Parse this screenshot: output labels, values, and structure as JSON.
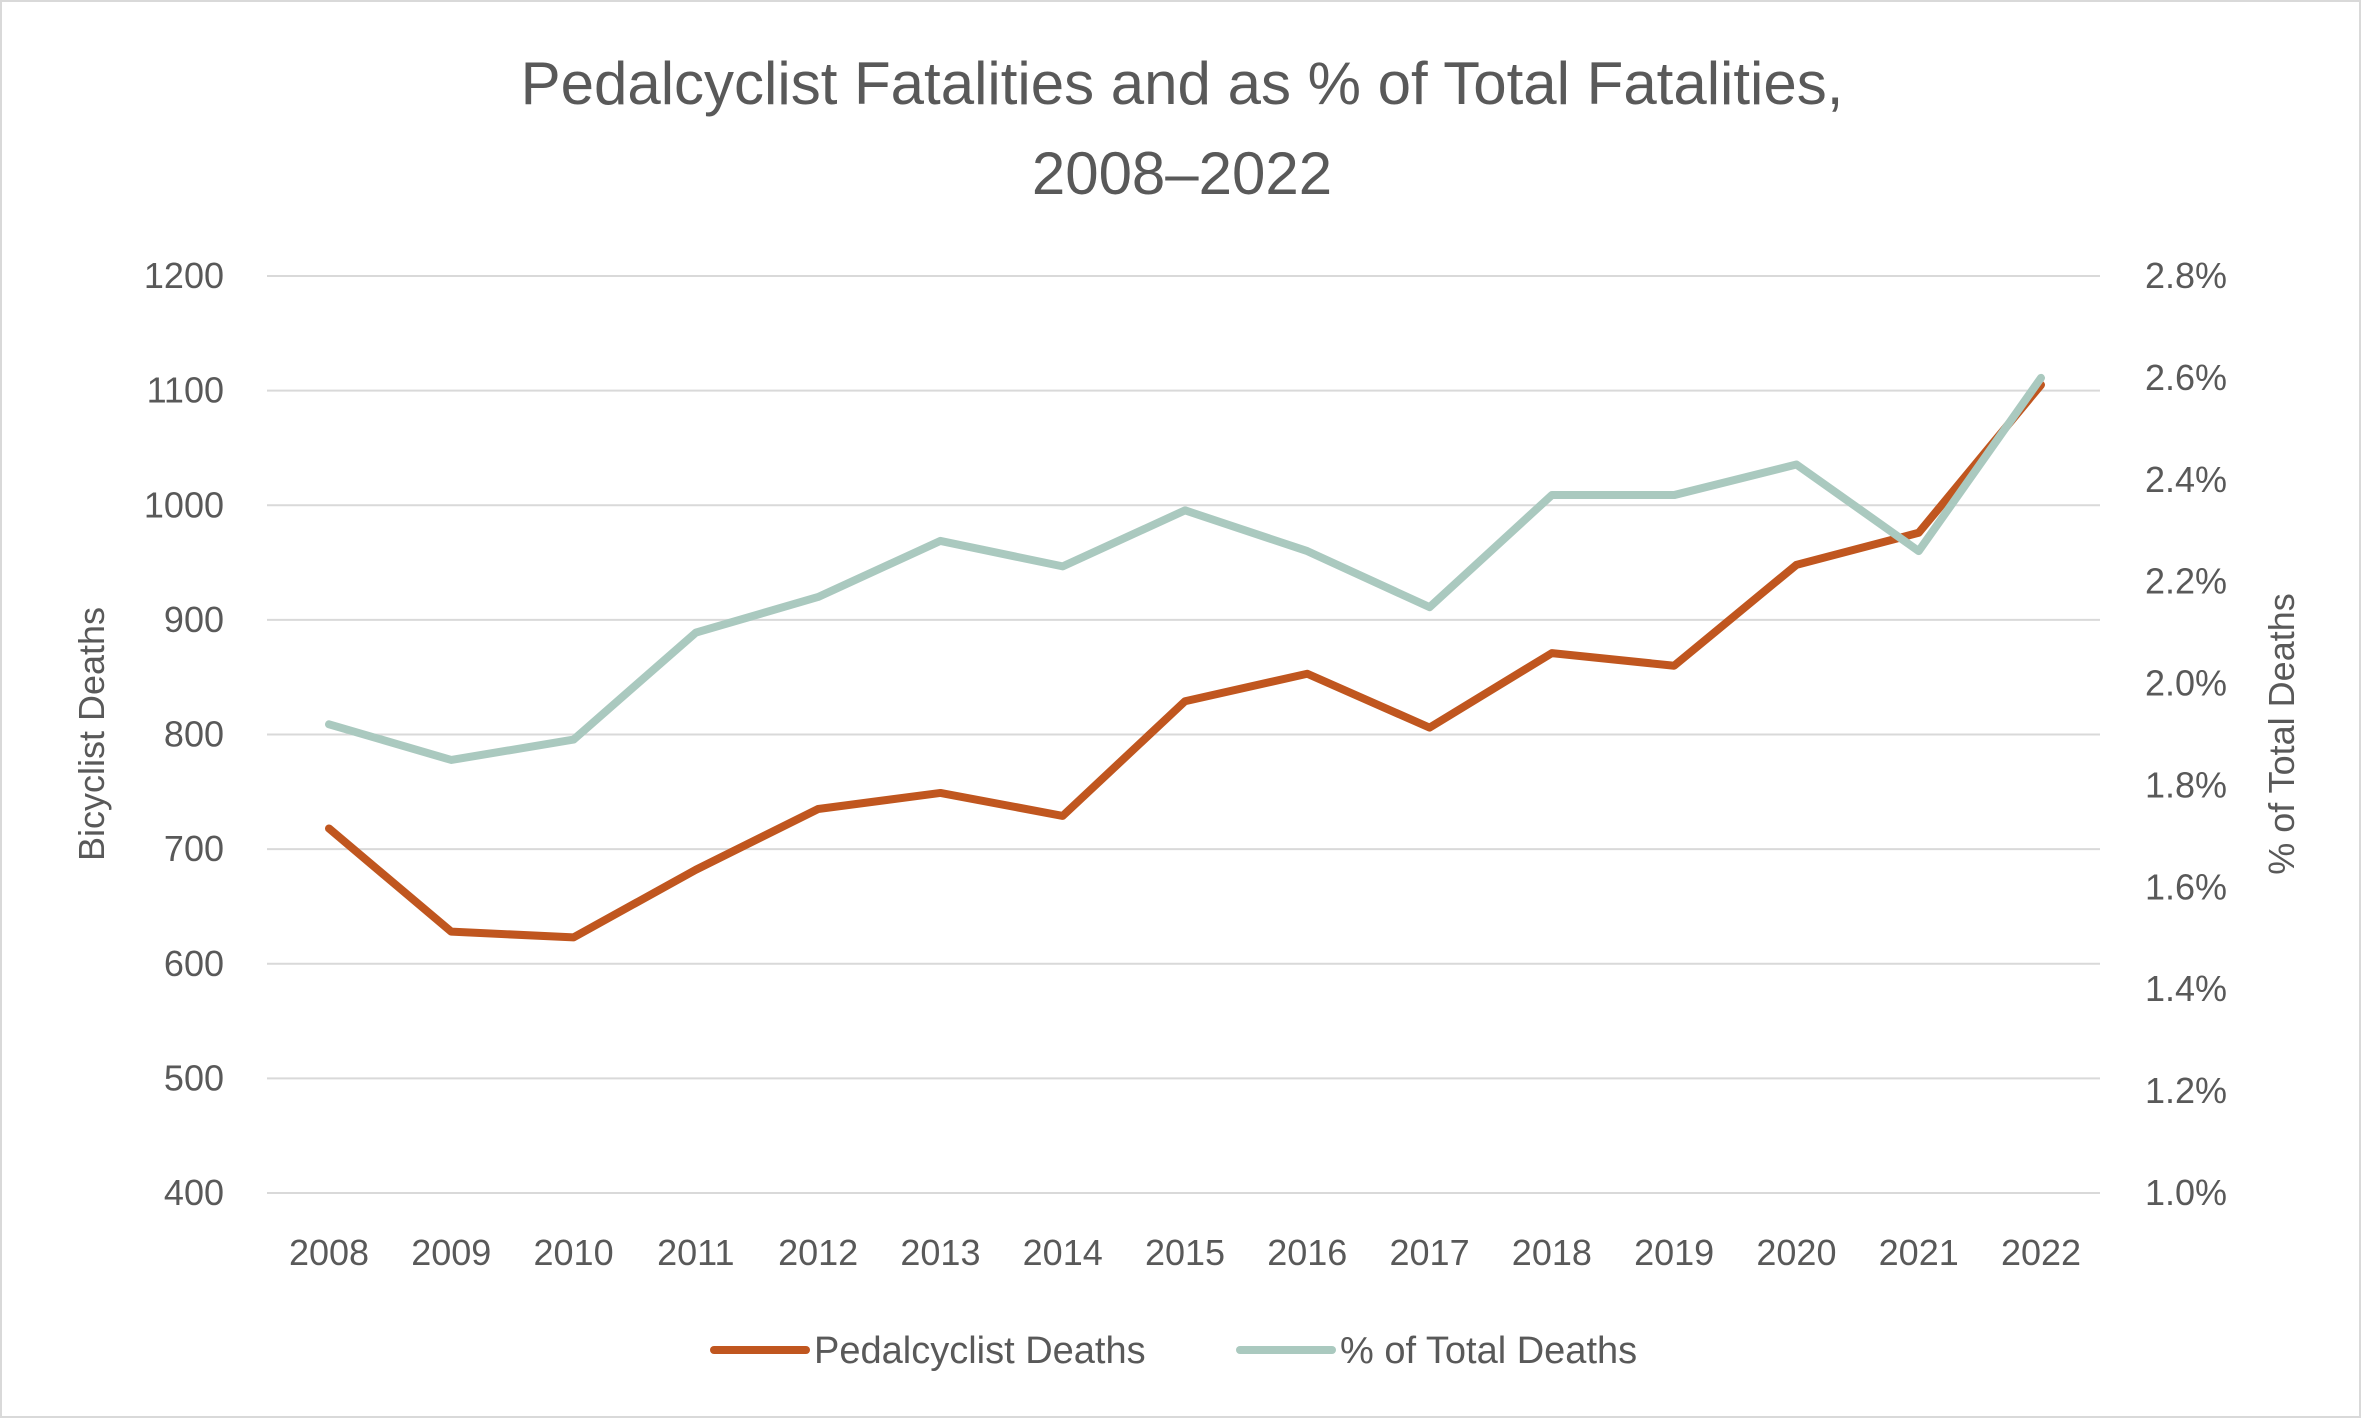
{
  "chart_data": {
    "type": "line",
    "title_line1": "Pedalcyclist Fatalities and as % of Total Fatalities,",
    "title_line2": "2008–2022",
    "xlabel": "",
    "ylabel": "Bicyclist Deaths",
    "y2label": "% of Total Deaths",
    "ylim": [
      400,
      1200
    ],
    "y2lim": [
      1.0,
      2.8
    ],
    "yticks": [
      "400",
      "500",
      "600",
      "700",
      "800",
      "900",
      "1000",
      "1100",
      "1200"
    ],
    "y2ticks": [
      "1.0%",
      "1.2%",
      "1.4%",
      "1.6%",
      "1.8%",
      "2.0%",
      "2.2%",
      "2.4%",
      "2.6%",
      "2.8%"
    ],
    "categories": [
      "2008",
      "2009",
      "2010",
      "2011",
      "2012",
      "2013",
      "2014",
      "2015",
      "2016",
      "2017",
      "2018",
      "2019",
      "2020",
      "2021",
      "2022"
    ],
    "grid": true,
    "legend_position": "bottom",
    "series": [
      {
        "name": "Pedalcyclist Deaths",
        "axis": "left",
        "color": "#C0561F",
        "values": [
          718,
          628,
          623,
          682,
          735,
          749,
          729,
          829,
          853,
          806,
          871,
          860,
          948,
          976,
          1105
        ]
      },
      {
        "name": "% of Total Deaths",
        "axis": "right",
        "color": "#AAC9BF",
        "values": [
          1.92,
          1.85,
          1.89,
          2.1,
          2.17,
          2.28,
          2.23,
          2.34,
          2.26,
          2.15,
          2.37,
          2.37,
          2.43,
          2.26,
          2.6
        ]
      }
    ]
  }
}
